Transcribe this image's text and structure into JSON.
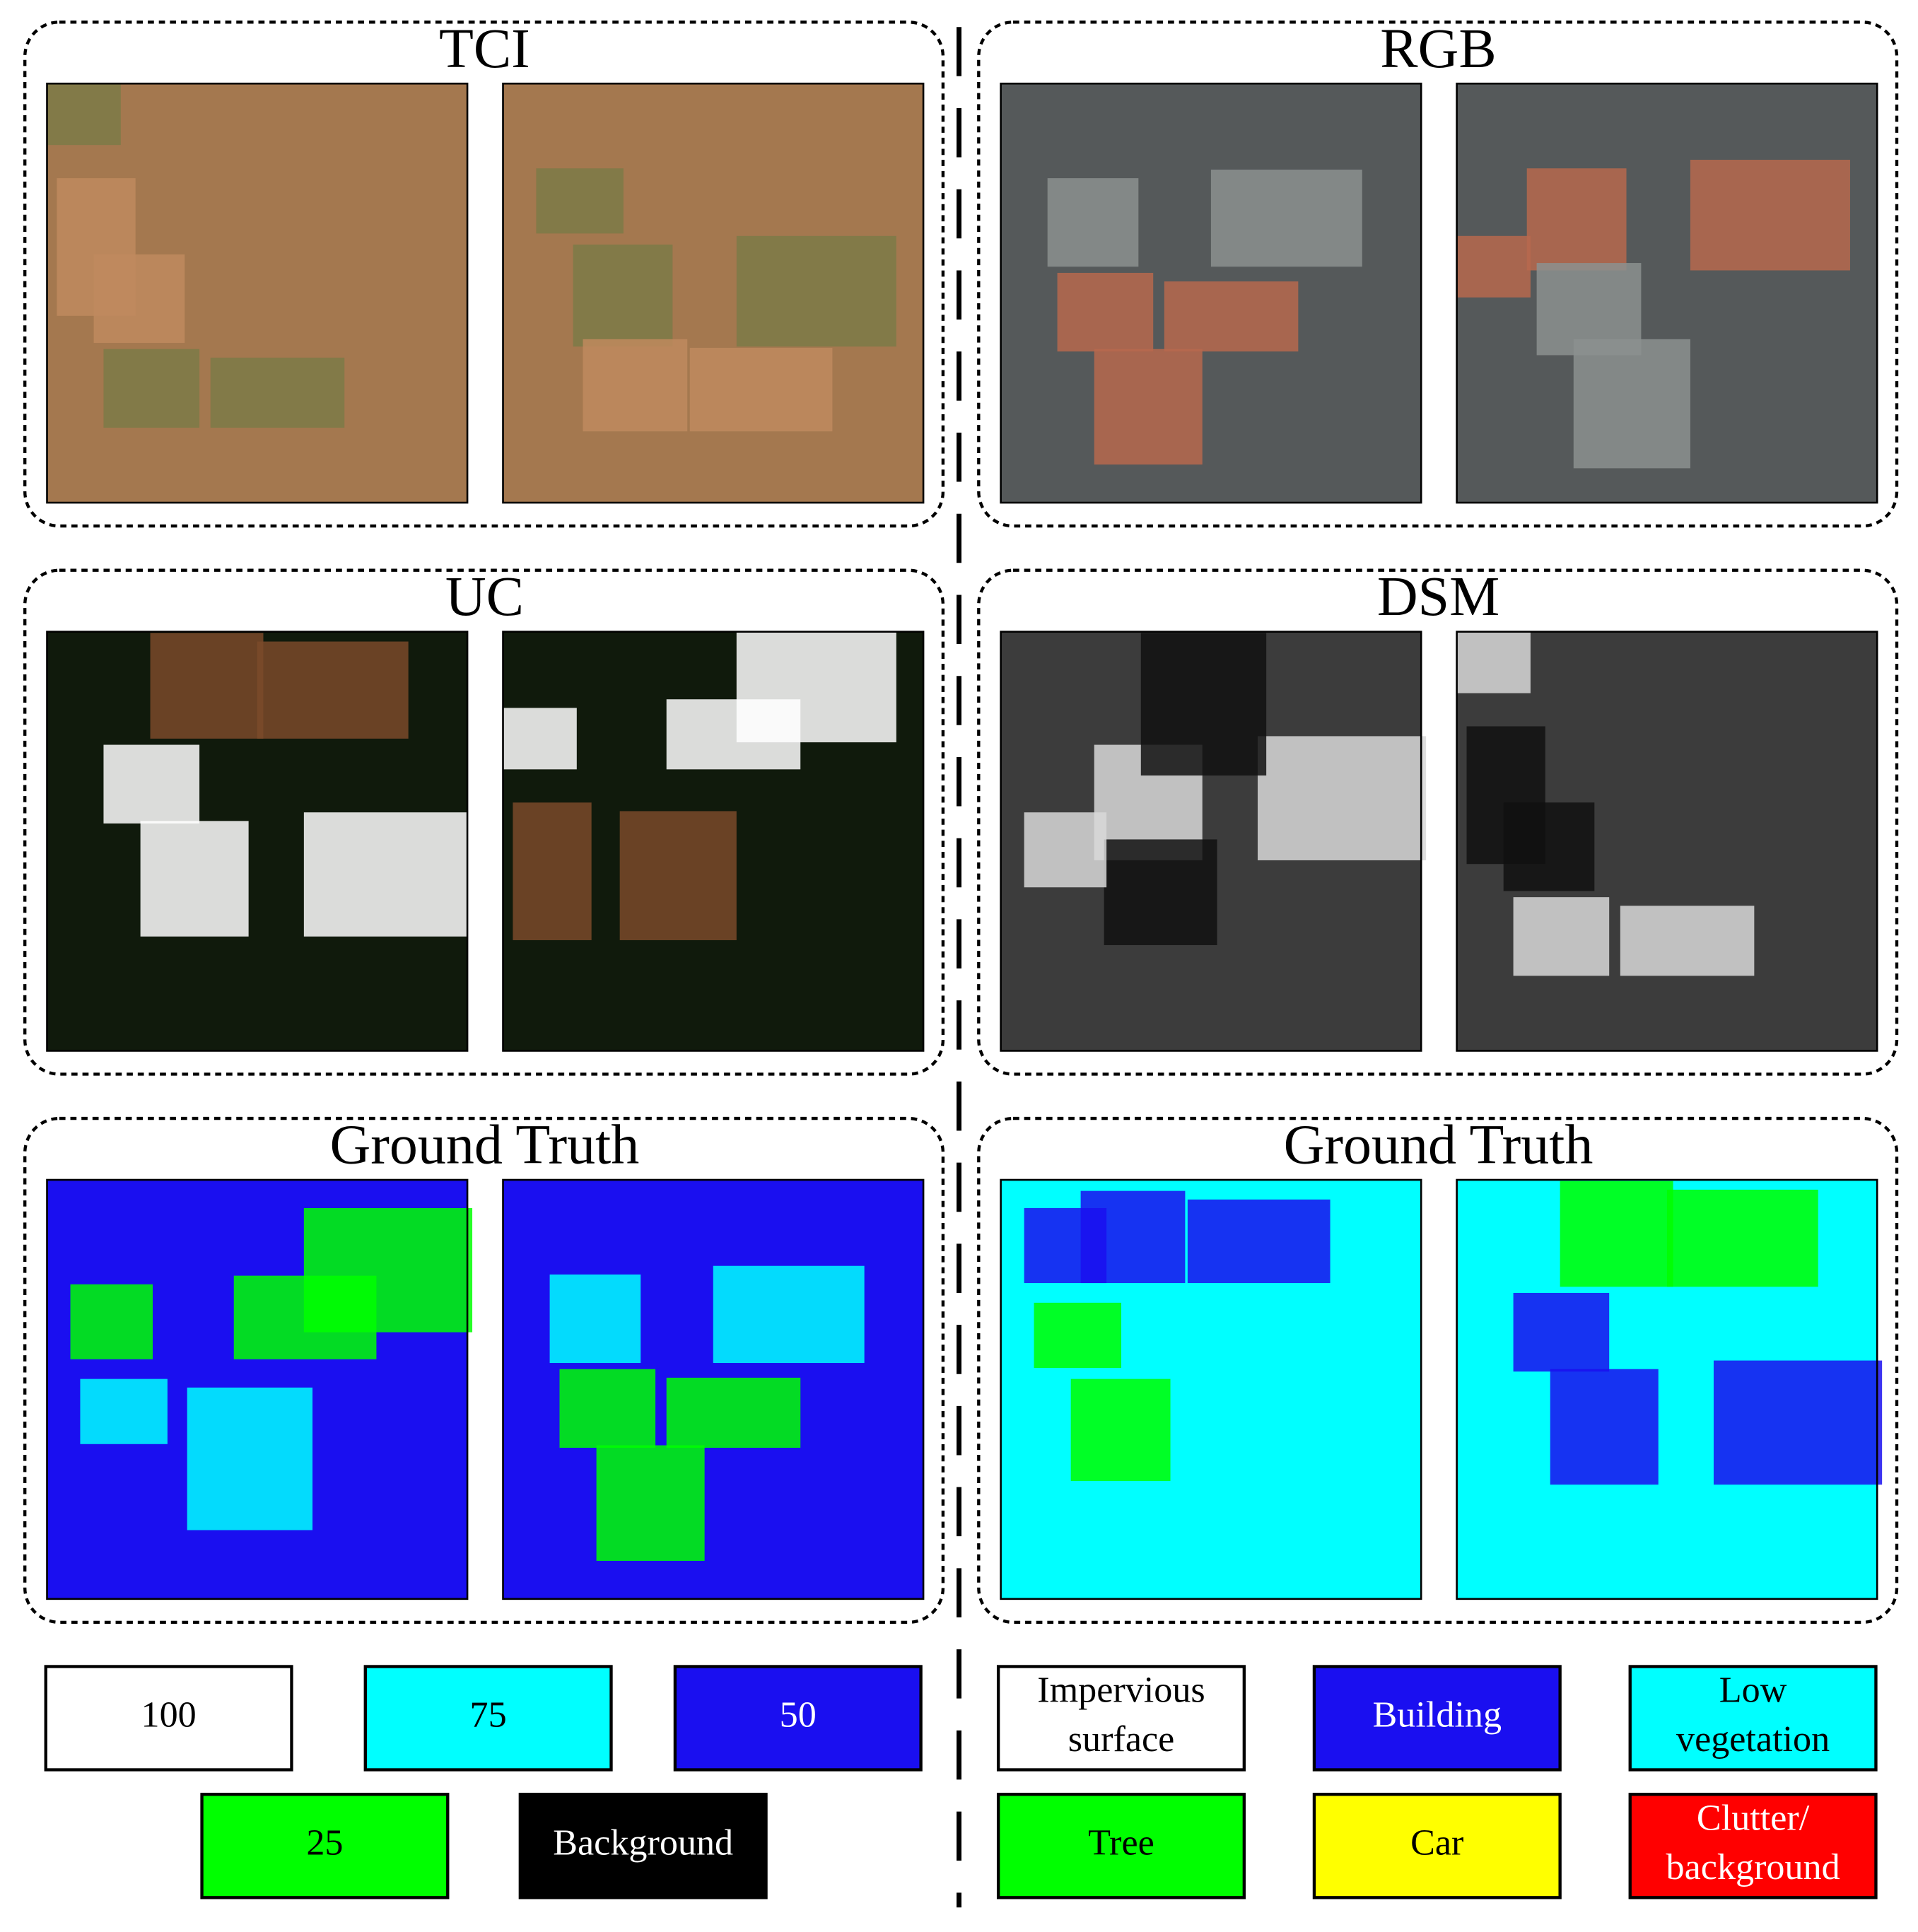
{
  "panels": [
    {
      "title": "TCI"
    },
    {
      "title": "RGB"
    },
    {
      "title": "UC"
    },
    {
      "title": "DSM"
    },
    {
      "title": "Ground Truth"
    },
    {
      "title": "Ground Truth"
    }
  ],
  "legends": [
    {
      "items": [
        {
          "lines": [
            "100"
          ],
          "color": "#ffffff"
        },
        {
          "lines": [
            "75"
          ],
          "color": "#00ffff"
        },
        {
          "lines": [
            "50"
          ],
          "color": "#1a0ff0"
        },
        {
          "lines": [
            "25"
          ],
          "color": "#00ff00"
        },
        {
          "lines": [
            "Background"
          ],
          "color": "#000000"
        }
      ]
    },
    {
      "items": [
        {
          "lines": [
            "Impervious",
            "surface"
          ],
          "color": "#ffffff"
        },
        {
          "lines": [
            "Building"
          ],
          "color": "#1a0ff0"
        },
        {
          "lines": [
            "Low",
            "vegetation"
          ],
          "color": "#00ffff"
        },
        {
          "lines": [
            "Tree"
          ],
          "color": "#00ff00"
        },
        {
          "lines": [
            "Car"
          ],
          "color": "#ffff00"
        },
        {
          "lines": [
            "Clutter/",
            "background"
          ],
          "color": "#ff0000"
        }
      ]
    }
  ]
}
